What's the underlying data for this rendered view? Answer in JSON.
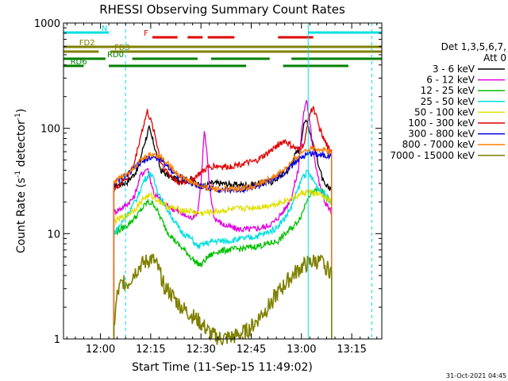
{
  "chart_data": {
    "type": "line",
    "title": "RHESSI Observing Summary Count Rates",
    "xlabel": "Start Time (11-Sep-15 11:49:02)",
    "ylabel_main": "Count Rate (s",
    "ylabel_sup1": "-1",
    "ylabel_mid": " detector",
    "ylabel_sup2": "-1",
    "ylabel_end": ")",
    "footer": "31-Oct-2021 04:45",
    "yscale": "log",
    "ylim": [
      1,
      1000
    ],
    "xlim_minutes": [
      -11.03,
      83.97
    ],
    "x_ticks": [
      {
        "m": 0,
        "label": "12:00"
      },
      {
        "m": 15,
        "label": "12:15"
      },
      {
        "m": 30,
        "label": "12:30"
      },
      {
        "m": 45,
        "label": "12:45"
      },
      {
        "m": 60,
        "label": "13:00"
      },
      {
        "m": 75,
        "label": "13:15"
      }
    ],
    "y_ticks": [
      {
        "v": 1,
        "label": "1"
      },
      {
        "v": 10,
        "label": "10"
      },
      {
        "v": 100,
        "label": "100"
      },
      {
        "v": 1000,
        "label": "1000"
      }
    ],
    "legend_header": [
      "Det 1,3,5,6,7,",
      "Att 0"
    ],
    "series": [
      {
        "name": "3 - 6 keV",
        "color": "#000000",
        "points": [
          [
            4,
            28
          ],
          [
            8,
            31
          ],
          [
            11,
            40
          ],
          [
            13,
            70
          ],
          [
            14.5,
            100
          ],
          [
            16,
            70
          ],
          [
            18,
            40
          ],
          [
            21,
            34
          ],
          [
            24,
            32
          ],
          [
            27,
            33
          ],
          [
            29,
            30
          ],
          [
            30,
            28
          ],
          [
            31,
            28
          ],
          [
            33,
            30
          ],
          [
            36,
            30
          ],
          [
            40,
            29
          ],
          [
            44,
            29
          ],
          [
            48,
            30
          ],
          [
            51,
            31
          ],
          [
            53,
            34
          ],
          [
            56,
            40
          ],
          [
            58,
            55
          ],
          [
            59.5,
            65
          ],
          [
            60.5,
            100
          ],
          [
            61.5,
            125
          ],
          [
            63,
            80
          ],
          [
            64.5,
            55
          ],
          [
            66,
            35
          ],
          [
            67,
            28
          ],
          [
            69,
            27
          ]
        ]
      },
      {
        "name": "6 - 12 keV",
        "color": "#e000e0",
        "points": [
          [
            4,
            16
          ],
          [
            7,
            18
          ],
          [
            10,
            22
          ],
          [
            12,
            36
          ],
          [
            14,
            42
          ],
          [
            16,
            24
          ],
          [
            19,
            19
          ],
          [
            22,
            17
          ],
          [
            25,
            15
          ],
          [
            27,
            14
          ],
          [
            29,
            16
          ],
          [
            30,
            30
          ],
          [
            31,
            95
          ],
          [
            31.7,
            60
          ],
          [
            32.5,
            28
          ],
          [
            34,
            14
          ],
          [
            37,
            12
          ],
          [
            41,
            11
          ],
          [
            45,
            11
          ],
          [
            49,
            11.5
          ],
          [
            52,
            13
          ],
          [
            55,
            17
          ],
          [
            57,
            22
          ],
          [
            59,
            40
          ],
          [
            60.5,
            130
          ],
          [
            61.5,
            190
          ],
          [
            62.5,
            110
          ],
          [
            64,
            50
          ],
          [
            65.5,
            28
          ],
          [
            67,
            20
          ],
          [
            69,
            16
          ]
        ]
      },
      {
        "name": "12 - 25 keV",
        "color": "#00c000",
        "points": [
          [
            4,
            10
          ],
          [
            8,
            12
          ],
          [
            11,
            15
          ],
          [
            14,
            20
          ],
          [
            16,
            19
          ],
          [
            18,
            14
          ],
          [
            20,
            10.5
          ],
          [
            23,
            8
          ],
          [
            26,
            6.5
          ],
          [
            28,
            5.5
          ],
          [
            30,
            5
          ],
          [
            32,
            6
          ],
          [
            35,
            6.8
          ],
          [
            38,
            7
          ],
          [
            42,
            7.2
          ],
          [
            46,
            7.5
          ],
          [
            50,
            8
          ],
          [
            53,
            8.5
          ],
          [
            56,
            10.5
          ],
          [
            58,
            12
          ],
          [
            60,
            15
          ],
          [
            62,
            23
          ],
          [
            64,
            25
          ],
          [
            66,
            26
          ],
          [
            67,
            22
          ],
          [
            69,
            20
          ]
        ]
      },
      {
        "name": "25 - 50 keV",
        "color": "#00e0e0",
        "points": [
          [
            4,
            10
          ],
          [
            8,
            15
          ],
          [
            11,
            22
          ],
          [
            13,
            32
          ],
          [
            15,
            38
          ],
          [
            17,
            26
          ],
          [
            19,
            19
          ],
          [
            21,
            15
          ],
          [
            24,
            10.5
          ],
          [
            27,
            9
          ],
          [
            29,
            7.5
          ],
          [
            31,
            8
          ],
          [
            34,
            8.5
          ],
          [
            37,
            8.5
          ],
          [
            41,
            8.8
          ],
          [
            45,
            9.2
          ],
          [
            49,
            10
          ],
          [
            52,
            11
          ],
          [
            55,
            14
          ],
          [
            57,
            18
          ],
          [
            58.5,
            24
          ],
          [
            60.5,
            36
          ],
          [
            62,
            38
          ],
          [
            63.5,
            32
          ],
          [
            65,
            27
          ],
          [
            67,
            24
          ],
          [
            69,
            20
          ]
        ]
      },
      {
        "name": "50 - 100 keV",
        "color": "#e0e000",
        "points": [
          [
            4,
            13
          ],
          [
            8,
            15
          ],
          [
            11,
            18
          ],
          [
            13,
            22
          ],
          [
            15,
            23
          ],
          [
            17,
            21
          ],
          [
            20,
            18
          ],
          [
            23,
            17
          ],
          [
            26,
            16.5
          ],
          [
            28,
            16
          ],
          [
            30,
            15.5
          ],
          [
            33,
            16
          ],
          [
            36,
            16.5
          ],
          [
            40,
            17
          ],
          [
            44,
            17.5
          ],
          [
            48,
            18
          ],
          [
            52,
            19
          ],
          [
            55,
            20.5
          ],
          [
            58,
            22
          ],
          [
            60,
            24
          ],
          [
            62,
            25
          ],
          [
            64,
            24
          ],
          [
            66,
            23
          ],
          [
            67,
            22
          ],
          [
            69,
            20
          ]
        ]
      },
      {
        "name": "100 - 300 keV",
        "color": "#e00000",
        "points": [
          [
            4,
            26
          ],
          [
            8,
            34
          ],
          [
            10,
            45
          ],
          [
            12,
            85
          ],
          [
            14,
            145
          ],
          [
            16,
            95
          ],
          [
            18,
            48
          ],
          [
            20,
            38
          ],
          [
            22,
            33
          ],
          [
            24,
            30
          ],
          [
            27,
            32
          ],
          [
            30,
            38
          ],
          [
            32,
            42
          ],
          [
            34,
            44
          ],
          [
            38,
            43
          ],
          [
            42,
            46
          ],
          [
            46,
            48
          ],
          [
            50,
            58
          ],
          [
            53,
            70
          ],
          [
            55,
            76
          ],
          [
            57,
            68
          ],
          [
            59,
            62
          ],
          [
            61,
            72
          ],
          [
            62,
            125
          ],
          [
            63.5,
            160
          ],
          [
            65,
            110
          ],
          [
            66.5,
            80
          ],
          [
            68,
            65
          ],
          [
            69,
            62
          ]
        ]
      },
      {
        "name": "300 - 800 keV",
        "color": "#0000e0",
        "points": [
          [
            4,
            30
          ],
          [
            8,
            36
          ],
          [
            11,
            44
          ],
          [
            14,
            52
          ],
          [
            16,
            53
          ],
          [
            18,
            50
          ],
          [
            20,
            44
          ],
          [
            22,
            38
          ],
          [
            24,
            34
          ],
          [
            27,
            30
          ],
          [
            30,
            28
          ],
          [
            33,
            27
          ],
          [
            36,
            26
          ],
          [
            40,
            26
          ],
          [
            44,
            27
          ],
          [
            48,
            29
          ],
          [
            52,
            33
          ],
          [
            55,
            38
          ],
          [
            57,
            44
          ],
          [
            59,
            50
          ],
          [
            61,
            56
          ],
          [
            63,
            58
          ],
          [
            65,
            57
          ],
          [
            67,
            56
          ],
          [
            69,
            55
          ]
        ]
      },
      {
        "name": "800 - 7000 keV",
        "color": "#ff8000",
        "points": [
          [
            4,
            31
          ],
          [
            8,
            38
          ],
          [
            11,
            46
          ],
          [
            14,
            55
          ],
          [
            16,
            57
          ],
          [
            18,
            54
          ],
          [
            20,
            47
          ],
          [
            22,
            40
          ],
          [
            24,
            35
          ],
          [
            27,
            31
          ],
          [
            30,
            28
          ],
          [
            33,
            27
          ],
          [
            36,
            26.5
          ],
          [
            40,
            26.5
          ],
          [
            44,
            27.5
          ],
          [
            48,
            30
          ],
          [
            52,
            35
          ],
          [
            55,
            41
          ],
          [
            57,
            47
          ],
          [
            59,
            55
          ],
          [
            61,
            62
          ],
          [
            63,
            66
          ],
          [
            65,
            64
          ],
          [
            67,
            62
          ],
          [
            69,
            60
          ]
        ]
      },
      {
        "name": "7000 - 15000 keV",
        "color": "#808000",
        "points": [
          [
            4,
            1.3
          ],
          [
            5,
            2.6
          ],
          [
            6,
            3.2
          ],
          [
            7,
            3.6
          ],
          [
            8,
            3.3
          ],
          [
            10,
            4.2
          ],
          [
            12,
            5.0
          ],
          [
            14,
            5.5
          ],
          [
            15,
            5.8
          ],
          [
            16,
            5.5
          ],
          [
            17,
            4.8
          ],
          [
            18,
            4.0
          ],
          [
            19,
            3.2
          ],
          [
            21,
            2.7
          ],
          [
            23,
            2.2
          ],
          [
            25,
            1.9
          ],
          [
            27,
            1.7
          ],
          [
            29,
            1.5
          ],
          [
            31,
            1.3
          ],
          [
            33,
            1.1
          ],
          [
            36,
            1.0
          ],
          [
            40,
            1.05
          ],
          [
            44,
            1.2
          ],
          [
            46,
            1.4
          ],
          [
            48,
            1.7
          ],
          [
            50,
            2.0
          ],
          [
            52,
            2.5
          ],
          [
            54,
            3.0
          ],
          [
            56,
            3.6
          ],
          [
            58,
            4.2
          ],
          [
            60,
            4.8
          ],
          [
            62,
            5.2
          ],
          [
            64,
            5.5
          ],
          [
            66,
            5.3
          ],
          [
            67,
            5.0
          ],
          [
            68,
            4.6
          ],
          [
            69,
            4.3
          ]
        ]
      }
    ],
    "flags": [
      {
        "name": "N",
        "color": "#00e0e0",
        "y": 41,
        "label_m": 1.2,
        "spans": [
          [
            -11.03,
            2.5
          ],
          [
            62,
            83.97
          ]
        ]
      },
      {
        "name": "F",
        "color": "#e00000",
        "y": 47,
        "label_m": 13.6,
        "spans": [
          [
            15.5,
            23
          ],
          [
            26,
            30.5
          ],
          [
            32,
            40
          ],
          [
            53,
            63.5
          ]
        ]
      },
      {
        "name": "FD2",
        "color": "#808000",
        "y": 59,
        "label_m": -4.0,
        "spans": [
          [
            -11.03,
            83.97
          ]
        ]
      },
      {
        "name": "FD3",
        "color": "#808000",
        "y": 65,
        "label_m": 6.5,
        "spans": [
          [
            -11.03,
            -0.5
          ],
          [
            3,
            83.97
          ]
        ]
      },
      {
        "name": "RD0",
        "color": "#008000",
        "y": 74,
        "label_m": 4.5,
        "spans": [
          [
            -11.03,
            1.5
          ],
          [
            9.5,
            29
          ],
          [
            33,
            50.5
          ],
          [
            57,
            83.97
          ]
        ]
      },
      {
        "name": "RD6",
        "color": "#008000",
        "y": 83,
        "label_m": -6.5,
        "spans": [
          [
            -11.03,
            -5
          ],
          [
            2.5,
            43.5
          ],
          [
            54.5,
            74
          ]
        ]
      }
    ],
    "vlines": [
      {
        "m": -11.03,
        "style": "solid",
        "color": "#00e0e0"
      },
      {
        "m": 7.5,
        "style": "dashed",
        "color": "#00e0e0"
      },
      {
        "m": 62,
        "style": "solid",
        "color": "#00e0e0"
      },
      {
        "m": 81,
        "style": "dashed",
        "color": "#00e0e0"
      }
    ]
  }
}
